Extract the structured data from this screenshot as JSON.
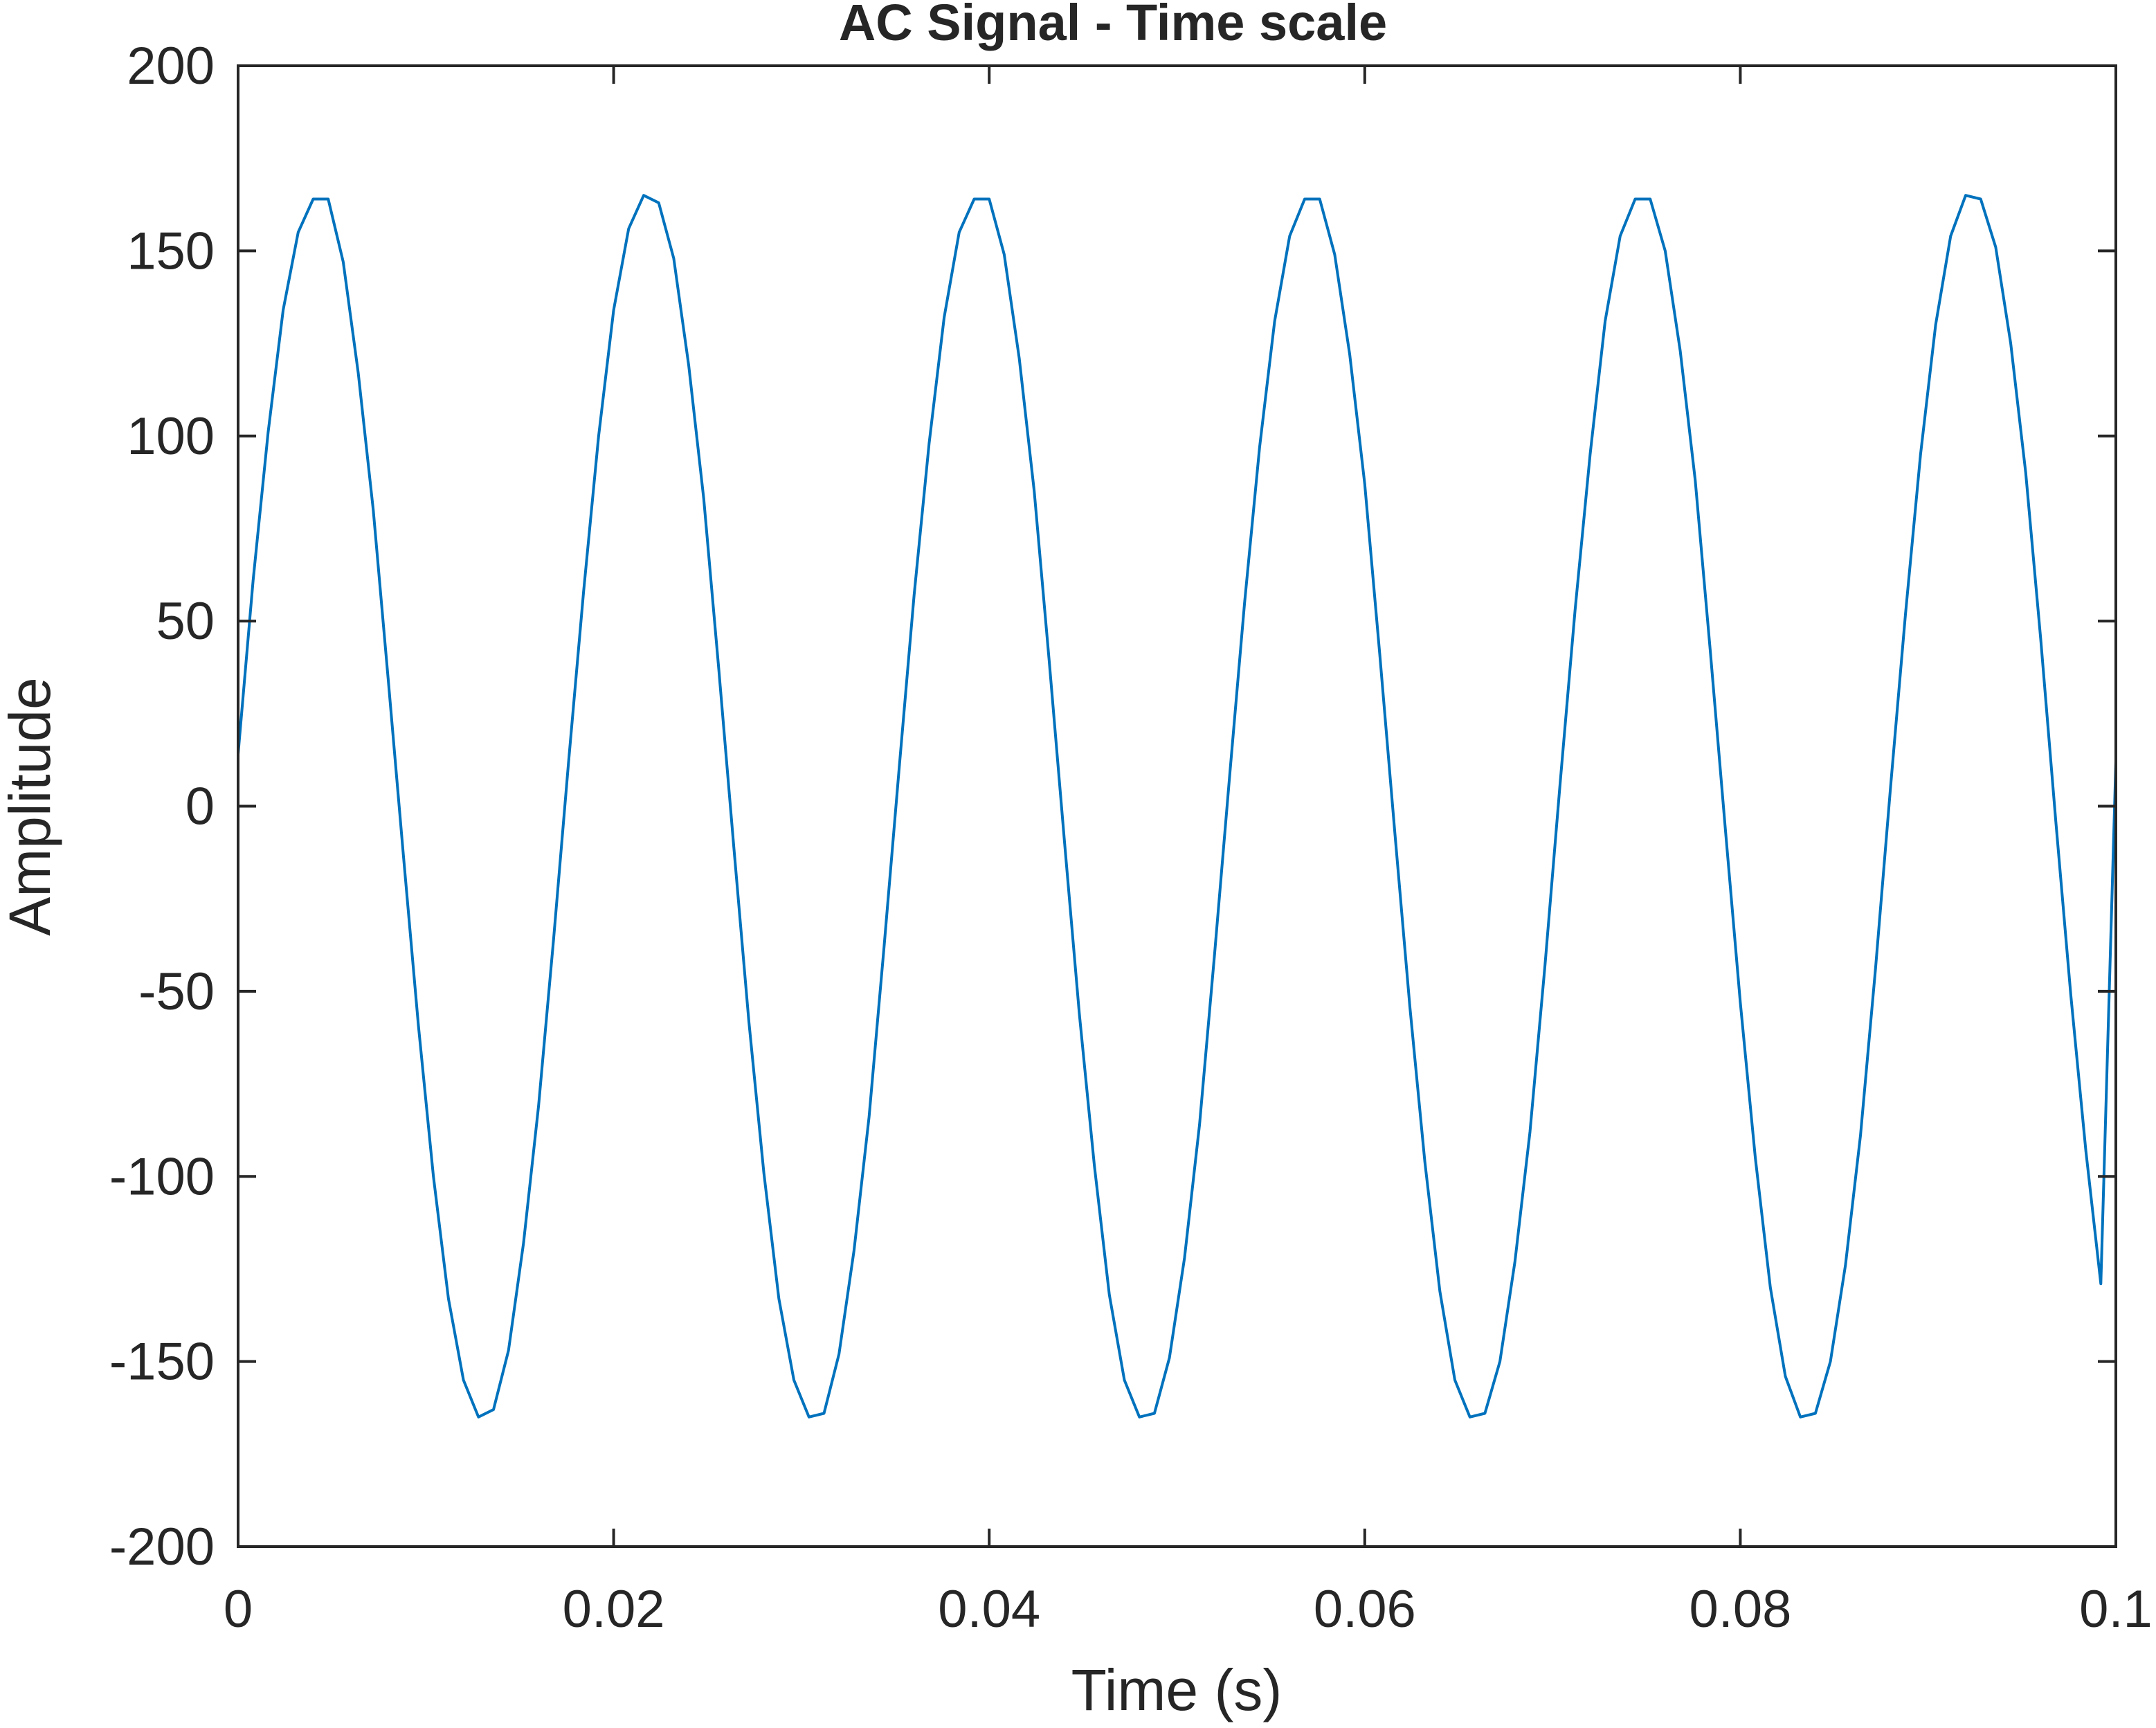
{
  "chart_data": {
    "type": "line",
    "title": "AC Signal - Time scale",
    "xlabel": "Time (s)",
    "ylabel": "Amplitude",
    "xlim": [
      0,
      0.1
    ],
    "ylim": [
      -200,
      200
    ],
    "x_ticks": [
      0,
      0.02,
      0.04,
      0.06,
      0.08,
      0.1
    ],
    "x_tick_labels": [
      "0",
      "0.02",
      "0.04",
      "0.06",
      "0.08",
      "0.1"
    ],
    "y_ticks": [
      200,
      150,
      100,
      50,
      0,
      -50,
      -100,
      -150,
      -200
    ],
    "y_tick_labels": [
      "200",
      "150",
      "100",
      "50",
      "0",
      "-50",
      "-100",
      "-150",
      "-200"
    ],
    "grid": false,
    "series": [
      {
        "color": "#0072BD",
        "x": [
          0,
          0.0008,
          0.0016,
          0.0024,
          0.0032,
          0.004,
          0.0048,
          0.0056,
          0.0064,
          0.0072,
          0.008,
          0.0088,
          0.0096,
          0.0104,
          0.0112,
          0.012,
          0.0128,
          0.0136,
          0.0144,
          0.0152,
          0.016,
          0.0168,
          0.0176,
          0.0184,
          0.0192,
          0.02,
          0.0208,
          0.0216,
          0.0224,
          0.0232,
          0.024,
          0.0248,
          0.0256,
          0.0264,
          0.0272,
          0.028,
          0.0288,
          0.0296,
          0.0304,
          0.0312,
          0.032,
          0.0328,
          0.0336,
          0.0344,
          0.0352,
          0.036,
          0.0368,
          0.0376,
          0.0384,
          0.0392,
          0.04,
          0.0408,
          0.0416,
          0.0424,
          0.0432,
          0.044,
          0.0448,
          0.0456,
          0.0464,
          0.0472,
          0.048,
          0.0488,
          0.0496,
          0.0504,
          0.0512,
          0.052,
          0.0528,
          0.0536,
          0.0544,
          0.0552,
          0.056,
          0.0568,
          0.0576,
          0.0584,
          0.0592,
          0.06,
          0.0608,
          0.0616,
          0.0624,
          0.0632,
          0.064,
          0.0648,
          0.0656,
          0.0664,
          0.0672,
          0.068,
          0.0688,
          0.0696,
          0.0704,
          0.0712,
          0.072,
          0.0728,
          0.0736,
          0.0744,
          0.0752,
          0.076,
          0.0768,
          0.0776,
          0.0784,
          0.0792,
          0.08,
          0.0808,
          0.0816,
          0.0824,
          0.0832,
          0.084,
          0.0848,
          0.0856,
          0.0864,
          0.0872,
          0.088,
          0.0888,
          0.0896,
          0.0904,
          0.0912,
          0.092,
          0.0928,
          0.0936,
          0.0944,
          0.0952,
          0.096,
          0.0968,
          0.0976,
          0.0984,
          0.0992,
          0.1
        ],
        "values": [
          14,
          61,
          101,
          134,
          155,
          164,
          164,
          147,
          117,
          80,
          34,
          -13,
          -59,
          -100,
          -133,
          -155,
          -165,
          -163,
          -147,
          -118,
          -81,
          -36,
          12,
          58,
          100,
          134,
          156,
          165,
          163,
          148,
          119,
          83,
          37,
          -11,
          -58,
          -99,
          -133,
          -155,
          -165,
          -164,
          -148,
          -120,
          -84,
          -38,
          10,
          57,
          98,
          132,
          155,
          164,
          164,
          149,
          121,
          85,
          39,
          -9,
          -56,
          -97,
          -132,
          -155,
          -165,
          -164,
          -149,
          -122,
          -86,
          -40,
          8,
          55,
          97,
          131,
          154,
          164,
          164,
          149,
          122,
          87,
          41,
          -7,
          -54,
          -96,
          -131,
          -155,
          -165,
          -164,
          -150,
          -123,
          -88,
          -43,
          6,
          53,
          95,
          131,
          154,
          164,
          164,
          150,
          123,
          88,
          42,
          -6,
          -53,
          -95,
          -130,
          -154,
          -165,
          -164,
          -150,
          -124,
          -89,
          -44,
          5,
          52,
          95,
          130,
          154,
          165,
          164,
          151,
          125,
          90,
          45,
          -4,
          -51,
          -93,
          -129,
          12
        ]
      }
    ]
  }
}
